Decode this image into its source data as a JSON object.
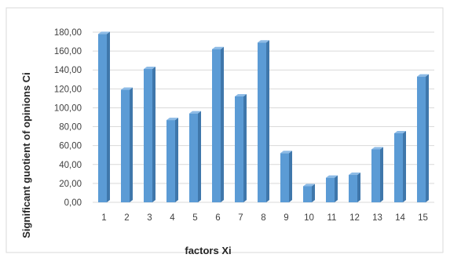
{
  "chart_data": {
    "type": "bar",
    "title": "",
    "xlabel": "factors Xi",
    "ylabel": "Significant  guotient of opinions Ci",
    "categories": [
      "1",
      "2",
      "3",
      "4",
      "5",
      "6",
      "7",
      "8",
      "9",
      "10",
      "11",
      "12",
      "13",
      "14",
      "15"
    ],
    "values": [
      178,
      119,
      141,
      87,
      94,
      162,
      112,
      169,
      52,
      17,
      26,
      29,
      56,
      73,
      133
    ],
    "ylim": [
      0,
      180
    ],
    "ytick_labels": [
      "0,00",
      "20,00",
      "40,00",
      "60,00",
      "80,00",
      "100,00",
      "120,00",
      "140,00",
      "160,00",
      "180,00"
    ],
    "grid": true,
    "legend": "none",
    "bar_style": "3d",
    "colors": {
      "bar_front": "#5b9bd5",
      "bar_side": "#3f77ab",
      "bar_top": "#8dbbe6",
      "grid": "#d9d9d9",
      "text": "#404040"
    }
  }
}
